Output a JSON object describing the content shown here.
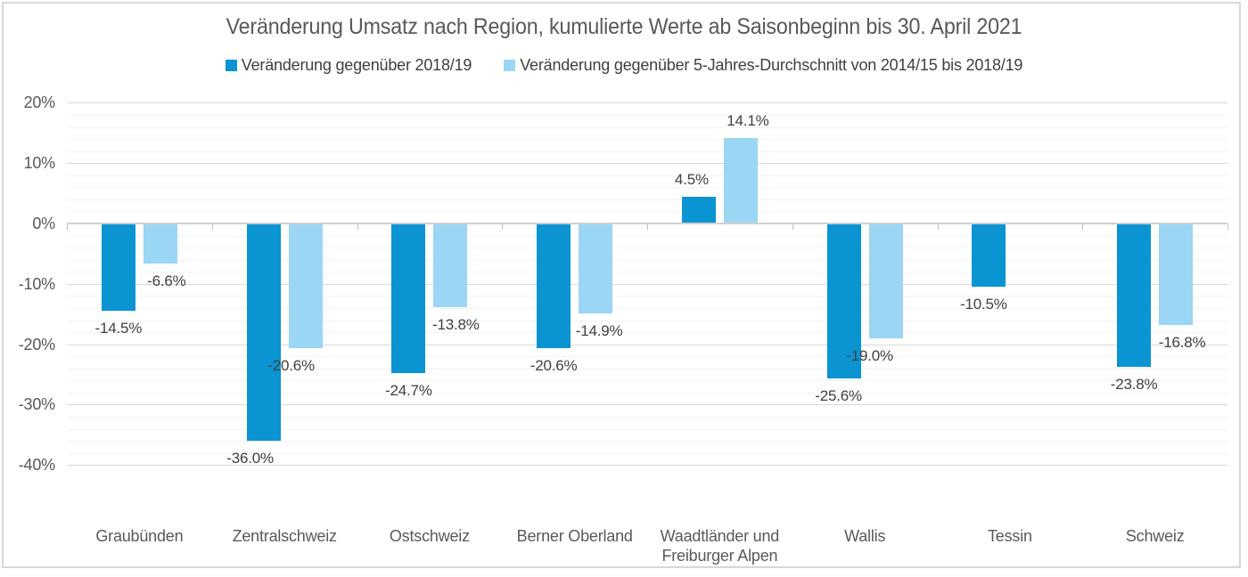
{
  "chart_data": {
    "type": "bar",
    "title": "Veränderung Umsatz nach Region, kumulierte Werte ab Saisonbeginn bis 30. April 2021",
    "categories": [
      "Graubünden",
      "Zentralschweiz",
      "Ostschweiz",
      "Berner Oberland",
      "Waadtländer und Freiburger Alpen",
      "Wallis",
      "Tessin",
      "Schweiz"
    ],
    "series": [
      {
        "name": "Veränderung gegenüber 2018/19",
        "color": "#0a94d2",
        "values": [
          -14.5,
          -36.0,
          -24.7,
          -20.6,
          4.5,
          -25.6,
          -10.5,
          -23.8
        ],
        "labels": [
          "-14.5%",
          "-36.0%",
          "-24.7%",
          "-20.6%",
          "4.5%",
          "-25.6%",
          "-10.5%",
          "-23.8%"
        ]
      },
      {
        "name": "Veränderung gegenüber 5-Jahres-Durchschnitt von 2014/15 bis 2018/19",
        "color": "#9bd6f4",
        "values": [
          -6.6,
          -20.6,
          -13.8,
          -14.9,
          14.1,
          -19.0,
          null,
          -16.8
        ],
        "labels": [
          "-6.6%",
          "-20.6%",
          "-13.8%",
          "-14.9%",
          "14.1%",
          "-19.0%",
          null,
          "-16.8%"
        ]
      }
    ],
    "ylabel": "",
    "xlabel": "",
    "ylim": [
      -40,
      20
    ],
    "y_major_unit": 10,
    "y_minor_unit": 2,
    "yticks": [
      "20%",
      "10%",
      "0%",
      "-10%",
      "-20%",
      "-30%",
      "-40%"
    ],
    "ytick_values": [
      20,
      10,
      0,
      -10,
      -20,
      -30,
      -40
    ],
    "grid": true,
    "legend_position": "top"
  }
}
